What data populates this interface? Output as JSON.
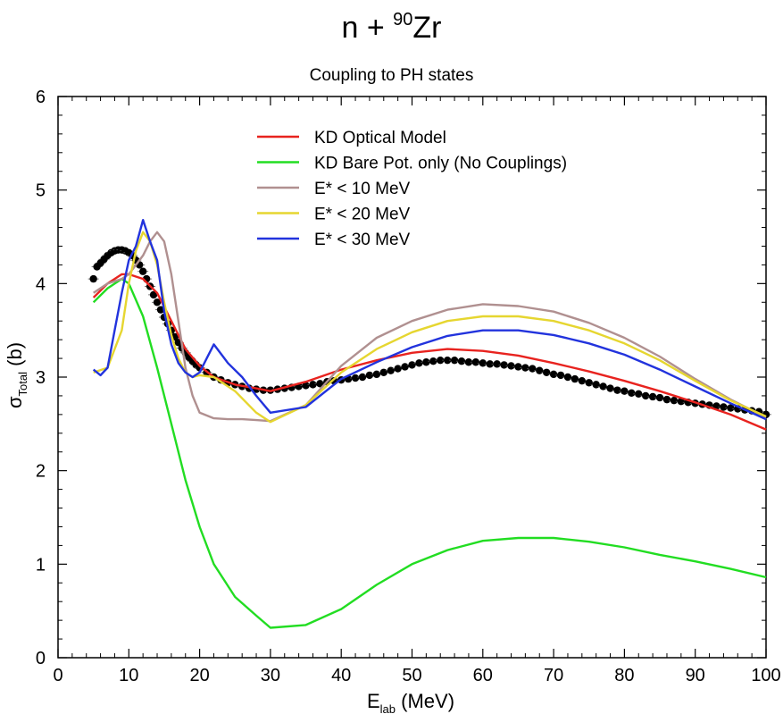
{
  "chart_data": {
    "type": "line",
    "title_main": "n + ",
    "title_mass": "90",
    "title_element": "Zr",
    "subtitle": "Coupling to PH states",
    "xlabel_main": "E",
    "xlabel_sub": "lab",
    "xlabel_unit": " (MeV)",
    "ylabel_main": "σ",
    "ylabel_sub": "Total",
    "ylabel_unit": " (b)",
    "xlim": [
      0,
      100
    ],
    "ylim": [
      0,
      6
    ],
    "xticks": [
      0,
      10,
      20,
      30,
      40,
      50,
      60,
      70,
      80,
      90,
      100
    ],
    "yticks": [
      0,
      1,
      2,
      3,
      4,
      5,
      6
    ],
    "legend_position": "top-center",
    "series": [
      {
        "name": "KD Optical Model",
        "color": "#e8231f",
        "x": [
          5,
          7,
          9,
          10,
          12,
          14,
          16,
          18,
          20,
          22,
          25,
          28,
          30,
          35,
          40,
          45,
          50,
          55,
          60,
          65,
          70,
          75,
          80,
          85,
          90,
          95,
          100
        ],
        "y": [
          3.85,
          4.0,
          4.1,
          4.1,
          4.05,
          3.9,
          3.6,
          3.3,
          3.12,
          3.0,
          2.92,
          2.88,
          2.85,
          2.95,
          3.08,
          3.18,
          3.26,
          3.3,
          3.28,
          3.23,
          3.15,
          3.06,
          2.96,
          2.85,
          2.73,
          2.6,
          2.44
        ]
      },
      {
        "name": "KD Bare Pot. only (No Couplings)",
        "color": "#22dd22",
        "x": [
          5,
          7,
          9,
          10,
          12,
          14,
          16,
          18,
          20,
          22,
          25,
          28,
          30,
          35,
          40,
          45,
          50,
          55,
          60,
          65,
          70,
          75,
          80,
          85,
          90,
          95,
          100
        ],
        "y": [
          3.8,
          3.95,
          4.05,
          4.0,
          3.65,
          3.1,
          2.5,
          1.9,
          1.4,
          1.0,
          0.65,
          0.45,
          0.32,
          0.35,
          0.52,
          0.78,
          1.0,
          1.15,
          1.25,
          1.28,
          1.28,
          1.24,
          1.18,
          1.1,
          1.03,
          0.95,
          0.86
        ]
      },
      {
        "name": "E* < 10 MeV",
        "color": "#b09090",
        "x": [
          5,
          7,
          9,
          10,
          12,
          13,
          14,
          15,
          16,
          17,
          18,
          19,
          20,
          22,
          24,
          26,
          28,
          30,
          35,
          40,
          45,
          50,
          55,
          60,
          65,
          70,
          75,
          80,
          85,
          90,
          95,
          100
        ],
        "y": [
          3.9,
          4.0,
          4.05,
          4.1,
          4.3,
          4.45,
          4.55,
          4.45,
          4.1,
          3.6,
          3.1,
          2.8,
          2.62,
          2.56,
          2.55,
          2.55,
          2.54,
          2.53,
          2.7,
          3.12,
          3.42,
          3.6,
          3.72,
          3.78,
          3.76,
          3.7,
          3.58,
          3.42,
          3.22,
          2.98,
          2.76,
          2.57
        ]
      },
      {
        "name": "E* < 20 MeV",
        "color": "#e6d630",
        "x": [
          5,
          7,
          9,
          10,
          11,
          12,
          13,
          14,
          15,
          16,
          17,
          18,
          19,
          20,
          22,
          25,
          28,
          30,
          35,
          40,
          45,
          50,
          55,
          60,
          65,
          70,
          75,
          80,
          85,
          90,
          95,
          100
        ],
        "y": [
          3.05,
          3.1,
          3.5,
          4.0,
          4.35,
          4.55,
          4.45,
          4.2,
          3.8,
          3.45,
          3.2,
          3.05,
          3.0,
          3.02,
          3.0,
          2.85,
          2.62,
          2.52,
          2.7,
          3.05,
          3.3,
          3.48,
          3.6,
          3.65,
          3.65,
          3.6,
          3.5,
          3.36,
          3.18,
          2.96,
          2.75,
          2.58
        ]
      },
      {
        "name": "E* < 30 MeV",
        "color": "#2233dd",
        "x": [
          5,
          6,
          7,
          8,
          9,
          10,
          11,
          12,
          13,
          14,
          15,
          16,
          17,
          18,
          19,
          20,
          21,
          22,
          24,
          26,
          28,
          30,
          35,
          40,
          45,
          50,
          55,
          60,
          65,
          70,
          75,
          80,
          85,
          90,
          95,
          100
        ],
        "y": [
          3.08,
          3.02,
          3.1,
          3.5,
          3.9,
          4.25,
          4.4,
          4.68,
          4.45,
          4.25,
          3.7,
          3.35,
          3.15,
          3.05,
          3.0,
          3.05,
          3.2,
          3.35,
          3.15,
          3.0,
          2.8,
          2.62,
          2.68,
          2.98,
          3.16,
          3.32,
          3.44,
          3.5,
          3.5,
          3.45,
          3.36,
          3.24,
          3.08,
          2.9,
          2.72,
          2.55
        ]
      },
      {
        "name": "",
        "color": "#000000",
        "style": "markers",
        "x": [
          5,
          5.5,
          6,
          6.5,
          7,
          7.5,
          8,
          8.5,
          9,
          9.5,
          10,
          10.5,
          11,
          11.5,
          12,
          12.5,
          13,
          13.5,
          14,
          14.5,
          15,
          15.5,
          16,
          16.5,
          17,
          17.5,
          18,
          18.5,
          19,
          19.5,
          20,
          21,
          22,
          23,
          24,
          25,
          26,
          27,
          28,
          29,
          30,
          31,
          32,
          33,
          34,
          35,
          36,
          37,
          38,
          39,
          40,
          41,
          42,
          43,
          44,
          45,
          46,
          47,
          48,
          49,
          50,
          51,
          52,
          53,
          54,
          55,
          56,
          57,
          58,
          59,
          60,
          61,
          62,
          63,
          64,
          65,
          66,
          67,
          68,
          69,
          70,
          71,
          72,
          73,
          74,
          75,
          76,
          77,
          78,
          79,
          80,
          81,
          82,
          83,
          84,
          85,
          86,
          87,
          88,
          89,
          90,
          91,
          92,
          93,
          94,
          95,
          96,
          97,
          98,
          99,
          100
        ],
        "y": [
          4.05,
          4.18,
          4.22,
          4.26,
          4.3,
          4.33,
          4.35,
          4.36,
          4.36,
          4.35,
          4.33,
          4.3,
          4.25,
          4.2,
          4.13,
          4.05,
          3.97,
          3.88,
          3.8,
          3.72,
          3.64,
          3.57,
          3.5,
          3.43,
          3.37,
          3.31,
          3.26,
          3.21,
          3.17,
          3.13,
          3.1,
          3.05,
          3.0,
          2.97,
          2.94,
          2.92,
          2.9,
          2.88,
          2.87,
          2.86,
          2.86,
          2.87,
          2.88,
          2.89,
          2.9,
          2.91,
          2.92,
          2.93,
          2.95,
          2.96,
          2.97,
          2.98,
          2.99,
          3.0,
          3.02,
          3.03,
          3.05,
          3.07,
          3.09,
          3.11,
          3.13,
          3.15,
          3.16,
          3.17,
          3.18,
          3.18,
          3.18,
          3.17,
          3.16,
          3.16,
          3.15,
          3.14,
          3.14,
          3.13,
          3.12,
          3.11,
          3.1,
          3.09,
          3.07,
          3.05,
          3.03,
          3.02,
          3.0,
          2.98,
          2.96,
          2.94,
          2.92,
          2.9,
          2.88,
          2.86,
          2.85,
          2.83,
          2.82,
          2.8,
          2.79,
          2.78,
          2.76,
          2.75,
          2.74,
          2.73,
          2.72,
          2.71,
          2.7,
          2.69,
          2.68,
          2.67,
          2.66,
          2.65,
          2.64,
          2.63,
          2.6
        ]
      }
    ]
  }
}
